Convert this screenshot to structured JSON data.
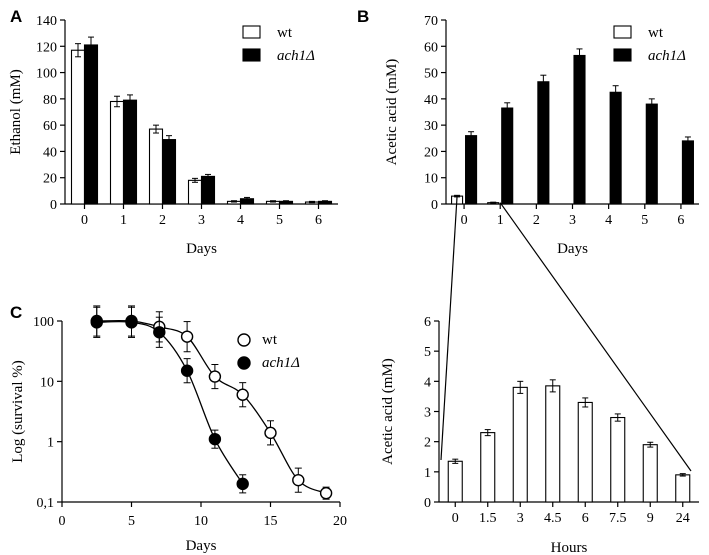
{
  "panel_labels": [
    "A",
    "B",
    "C"
  ],
  "colors": {
    "ink": "#000000",
    "open": "#ffffff",
    "filled": "#000000"
  },
  "chart_data": [
    {
      "id": "A",
      "type": "bar",
      "title": "",
      "xlabel": "Days",
      "ylabel": "Ethanol (mM)",
      "categories": [
        "0",
        "1",
        "2",
        "3",
        "4",
        "5",
        "6"
      ],
      "ylim": [
        0,
        140
      ],
      "yticks": [
        "0",
        "20",
        "40",
        "60",
        "80",
        "100",
        "120",
        "140"
      ],
      "legend_position": "top-right",
      "series": [
        {
          "name": "wt",
          "style": "open",
          "values": [
            117,
            78,
            57,
            18,
            2,
            2,
            1.5
          ],
          "errors": [
            5,
            4,
            3,
            1.5,
            0.5,
            0.5,
            0.5
          ]
        },
        {
          "name": "ach1Δ",
          "style": "filled",
          "values": [
            121,
            79,
            49,
            21,
            4,
            2,
            2
          ],
          "errors": [
            6,
            4,
            3,
            1.5,
            1,
            0.5,
            0.5
          ]
        }
      ]
    },
    {
      "id": "B",
      "type": "bar",
      "title": "",
      "xlabel": "Days",
      "ylabel": "Acetic acid  (mM)",
      "categories": [
        "0",
        "1",
        "2",
        "3",
        "4",
        "5",
        "6"
      ],
      "ylim": [
        0,
        70
      ],
      "yticks": [
        "0",
        "10",
        "20",
        "30",
        "40",
        "50",
        "60",
        "70"
      ],
      "legend_position": "top-right",
      "series": [
        {
          "name": "wt",
          "style": "open",
          "values": [
            3,
            0.5,
            0,
            0,
            0,
            0,
            0
          ],
          "errors": [
            0.3,
            0.2,
            0,
            0,
            0,
            0,
            0
          ]
        },
        {
          "name": "ach1Δ",
          "style": "filled",
          "values": [
            26,
            36.5,
            46.5,
            56.5,
            42.5,
            38,
            24
          ],
          "errors": [
            1.5,
            2,
            2.5,
            2.5,
            2.5,
            2,
            1.5
          ]
        }
      ]
    },
    {
      "id": "B-inset",
      "type": "bar",
      "title": "",
      "xlabel": "Hours",
      "ylabel": "Acetic acid  (mM)",
      "categories": [
        "0",
        "1.5",
        "3",
        "4.5",
        "6",
        "7.5",
        "9",
        "24"
      ],
      "ylim": [
        0,
        6
      ],
      "yticks": [
        "0",
        "1",
        "2",
        "3",
        "4",
        "5",
        "6"
      ],
      "series": [
        {
          "name": "wt",
          "style": "open",
          "values": [
            1.35,
            2.3,
            3.8,
            3.85,
            3.3,
            2.8,
            1.9,
            0.9
          ],
          "errors": [
            0.07,
            0.1,
            0.2,
            0.2,
            0.15,
            0.12,
            0.08,
            0.04
          ]
        }
      ],
      "zoom_from_days": [
        "0",
        "1"
      ]
    },
    {
      "id": "C",
      "type": "line",
      "title": "",
      "xlabel": "Days",
      "ylabel": "Log (survival %)",
      "yscale": "log",
      "xlim": [
        0,
        20
      ],
      "ylim": [
        0.1,
        100
      ],
      "xticks": [
        "0",
        "5",
        "10",
        "15",
        "20"
      ],
      "yticks": [
        "100",
        "10",
        "1",
        "0,1"
      ],
      "legend_position": "top-right",
      "series": [
        {
          "name": "wt",
          "style": "open",
          "x": [
            2.5,
            5,
            7,
            9,
            11,
            13,
            15,
            17,
            19
          ],
          "y": [
            100,
            100,
            80,
            55,
            12,
            6,
            1.4,
            0.23,
            0.14
          ],
          "errors": [
            0.25,
            0.25,
            0.25,
            0.25,
            0.2,
            0.2,
            0.2,
            0.2,
            0.1
          ]
        },
        {
          "name": "ach1Δ",
          "style": "filled",
          "x": [
            2.5,
            5,
            7,
            9,
            11,
            13
          ],
          "y": [
            95,
            95,
            65,
            15,
            1.1,
            0.2
          ],
          "errors": [
            0.25,
            0.25,
            0.25,
            0.2,
            0.15,
            0.15
          ]
        }
      ]
    }
  ]
}
